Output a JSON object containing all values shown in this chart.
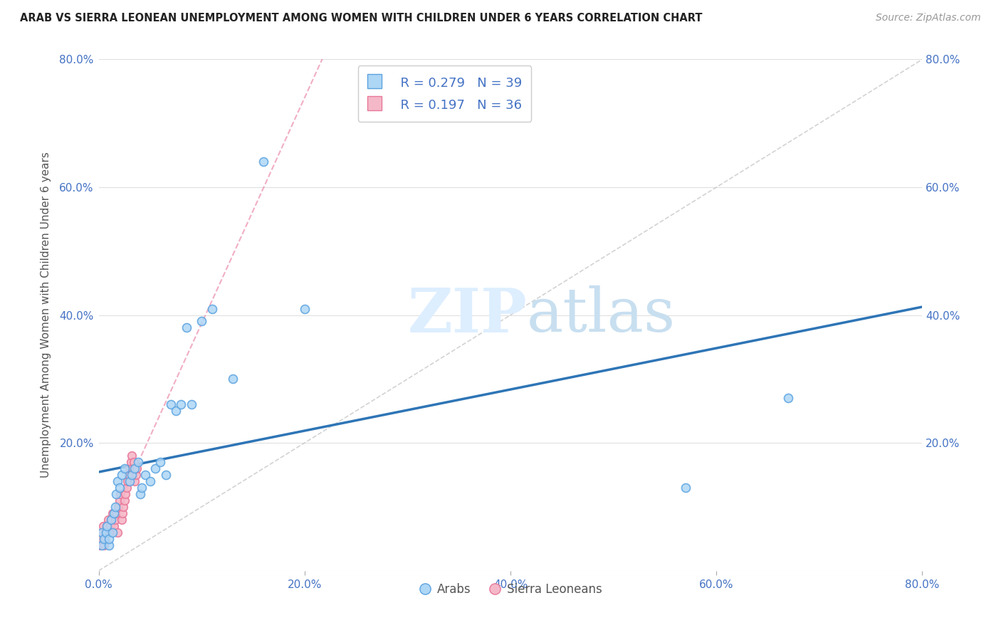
{
  "title": "ARAB VS SIERRA LEONEAN UNEMPLOYMENT AMONG WOMEN WITH CHILDREN UNDER 6 YEARS CORRELATION CHART",
  "source": "Source: ZipAtlas.com",
  "ylabel": "Unemployment Among Women with Children Under 6 years",
  "xlim": [
    0,
    0.8
  ],
  "ylim": [
    0,
    0.8
  ],
  "xtick_vals": [
    0.0,
    0.2,
    0.4,
    0.6,
    0.8
  ],
  "ytick_vals": [
    0.0,
    0.2,
    0.4,
    0.6,
    0.8
  ],
  "xtick_labels": [
    "0.0%",
    "20.0%",
    "40.0%",
    "60.0%",
    "80.0%"
  ],
  "ytick_labels": [
    "",
    "20.0%",
    "40.0%",
    "60.0%",
    "80.0%"
  ],
  "arab_color": "#aed6f5",
  "arab_edge_color": "#5ba3e0",
  "sierra_color": "#f5b8c8",
  "sierra_edge_color": "#e8789a",
  "trend_arab_color": "#2e75b6",
  "diag_color": "#c8c8c8",
  "watermark_color": "#ddeeff",
  "legend_R_arab": "R = 0.279",
  "legend_N_arab": "N = 39",
  "legend_R_sierra": "R = 0.197",
  "legend_N_sierra": "N = 36",
  "arab_x": [
    0.003,
    0.003,
    0.005,
    0.007,
    0.008,
    0.01,
    0.01,
    0.012,
    0.013,
    0.015,
    0.016,
    0.017,
    0.018,
    0.02,
    0.022,
    0.025,
    0.03,
    0.032,
    0.035,
    0.038,
    0.04,
    0.042,
    0.045,
    0.05,
    0.055,
    0.06,
    0.065,
    0.07,
    0.075,
    0.08,
    0.085,
    0.09,
    0.1,
    0.11,
    0.13,
    0.16,
    0.2,
    0.57,
    0.67
  ],
  "arab_y": [
    0.06,
    0.04,
    0.05,
    0.06,
    0.07,
    0.04,
    0.05,
    0.08,
    0.06,
    0.09,
    0.1,
    0.12,
    0.14,
    0.13,
    0.15,
    0.16,
    0.14,
    0.15,
    0.16,
    0.17,
    0.12,
    0.13,
    0.15,
    0.14,
    0.16,
    0.17,
    0.15,
    0.26,
    0.25,
    0.26,
    0.38,
    0.26,
    0.39,
    0.41,
    0.3,
    0.64,
    0.41,
    0.13,
    0.27
  ],
  "sierra_x": [
    0.001,
    0.002,
    0.003,
    0.004,
    0.005,
    0.006,
    0.007,
    0.008,
    0.009,
    0.01,
    0.011,
    0.012,
    0.013,
    0.015,
    0.016,
    0.017,
    0.018,
    0.019,
    0.02,
    0.021,
    0.022,
    0.023,
    0.024,
    0.025,
    0.026,
    0.027,
    0.028,
    0.029,
    0.03,
    0.031,
    0.032,
    0.033,
    0.034,
    0.035,
    0.036,
    0.037
  ],
  "sierra_y": [
    0.04,
    0.05,
    0.06,
    0.07,
    0.04,
    0.05,
    0.06,
    0.07,
    0.08,
    0.06,
    0.07,
    0.08,
    0.09,
    0.07,
    0.08,
    0.09,
    0.06,
    0.1,
    0.11,
    0.12,
    0.08,
    0.09,
    0.1,
    0.11,
    0.12,
    0.13,
    0.14,
    0.15,
    0.16,
    0.17,
    0.18,
    0.16,
    0.17,
    0.14,
    0.15,
    0.16
  ],
  "background_color": "#ffffff",
  "grid_color": "#e0e0e0"
}
